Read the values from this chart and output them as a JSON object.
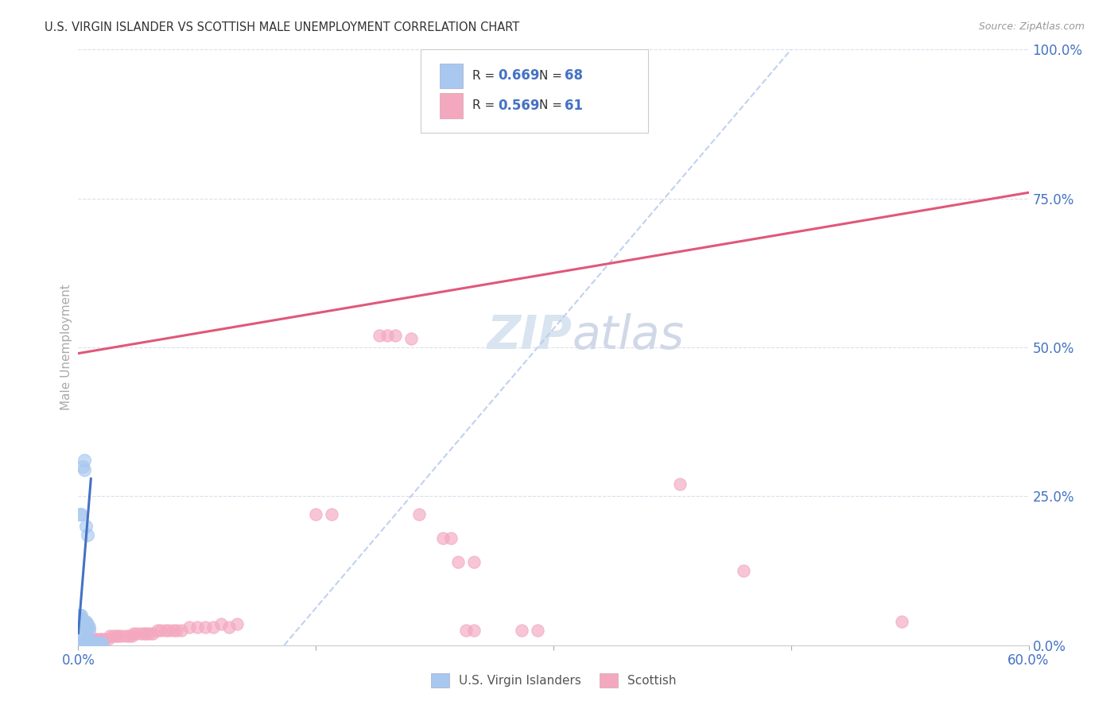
{
  "title": "U.S. VIRGIN ISLANDER VS SCOTTISH MALE UNEMPLOYMENT CORRELATION CHART",
  "source": "Source: ZipAtlas.com",
  "ylabel": "Male Unemployment",
  "x_min": 0.0,
  "x_max": 0.6,
  "y_min": 0.0,
  "y_max": 1.0,
  "legend_label_1": "U.S. Virgin Islanders",
  "legend_label_2": "Scottish",
  "color_blue": "#A8C8F0",
  "color_pink": "#F4A8C0",
  "color_blue_dark": "#4472C4",
  "color_pink_dark": "#E05878",
  "color_dashed": "#BBCCEE",
  "background_color": "#FFFFFF",
  "grid_color": "#DDDDEE",
  "title_color": "#333333",
  "source_color": "#999999",
  "axis_label_color": "#4472C4",
  "blue_scatter": [
    [
      0.001,
      0.22
    ],
    [
      0.003,
      0.3
    ],
    [
      0.004,
      0.31
    ],
    [
      0.004,
      0.295
    ],
    [
      0.002,
      0.22
    ],
    [
      0.005,
      0.2
    ],
    [
      0.006,
      0.185
    ],
    [
      0.0,
      0.045
    ],
    [
      0.0,
      0.04
    ],
    [
      0.0,
      0.035
    ],
    [
      0.0,
      0.03
    ],
    [
      0.001,
      0.05
    ],
    [
      0.001,
      0.045
    ],
    [
      0.001,
      0.04
    ],
    [
      0.001,
      0.035
    ],
    [
      0.002,
      0.05
    ],
    [
      0.002,
      0.045
    ],
    [
      0.002,
      0.04
    ],
    [
      0.003,
      0.04
    ],
    [
      0.003,
      0.035
    ],
    [
      0.003,
      0.03
    ],
    [
      0.004,
      0.04
    ],
    [
      0.004,
      0.035
    ],
    [
      0.005,
      0.04
    ],
    [
      0.005,
      0.035
    ],
    [
      0.006,
      0.035
    ],
    [
      0.006,
      0.03
    ],
    [
      0.007,
      0.03
    ],
    [
      0.007,
      0.025
    ],
    [
      0.0,
      0.025
    ],
    [
      0.0,
      0.02
    ],
    [
      0.0,
      0.015
    ],
    [
      0.0,
      0.01
    ],
    [
      0.001,
      0.025
    ],
    [
      0.001,
      0.02
    ],
    [
      0.001,
      0.015
    ],
    [
      0.001,
      0.01
    ],
    [
      0.002,
      0.025
    ],
    [
      0.002,
      0.02
    ],
    [
      0.002,
      0.015
    ],
    [
      0.003,
      0.02
    ],
    [
      0.003,
      0.015
    ],
    [
      0.004,
      0.015
    ],
    [
      0.004,
      0.01
    ],
    [
      0.005,
      0.01
    ],
    [
      0.005,
      0.005
    ],
    [
      0.006,
      0.01
    ],
    [
      0.006,
      0.005
    ],
    [
      0.007,
      0.005
    ],
    [
      0.008,
      0.005
    ],
    [
      0.0,
      0.005
    ],
    [
      0.0,
      0.003
    ],
    [
      0.001,
      0.005
    ],
    [
      0.001,
      0.003
    ],
    [
      0.002,
      0.003
    ],
    [
      0.003,
      0.003
    ],
    [
      0.004,
      0.003
    ],
    [
      0.005,
      0.003
    ],
    [
      0.006,
      0.003
    ],
    [
      0.007,
      0.003
    ],
    [
      0.008,
      0.003
    ],
    [
      0.009,
      0.003
    ],
    [
      0.01,
      0.003
    ],
    [
      0.011,
      0.003
    ],
    [
      0.012,
      0.003
    ],
    [
      0.013,
      0.003
    ],
    [
      0.014,
      0.003
    ],
    [
      0.015,
      0.003
    ]
  ],
  "pink_scatter": [
    [
      0.0,
      0.005
    ],
    [
      0.002,
      0.005
    ],
    [
      0.003,
      0.005
    ],
    [
      0.005,
      0.01
    ],
    [
      0.007,
      0.01
    ],
    [
      0.009,
      0.01
    ],
    [
      0.01,
      0.01
    ],
    [
      0.012,
      0.01
    ],
    [
      0.014,
      0.01
    ],
    [
      0.015,
      0.01
    ],
    [
      0.017,
      0.01
    ],
    [
      0.019,
      0.01
    ],
    [
      0.02,
      0.015
    ],
    [
      0.022,
      0.015
    ],
    [
      0.024,
      0.015
    ],
    [
      0.025,
      0.015
    ],
    [
      0.027,
      0.015
    ],
    [
      0.03,
      0.015
    ],
    [
      0.032,
      0.015
    ],
    [
      0.034,
      0.015
    ],
    [
      0.035,
      0.02
    ],
    [
      0.037,
      0.02
    ],
    [
      0.04,
      0.02
    ],
    [
      0.042,
      0.02
    ],
    [
      0.043,
      0.02
    ],
    [
      0.045,
      0.02
    ],
    [
      0.047,
      0.02
    ],
    [
      0.05,
      0.025
    ],
    [
      0.052,
      0.025
    ],
    [
      0.055,
      0.025
    ],
    [
      0.057,
      0.025
    ],
    [
      0.06,
      0.025
    ],
    [
      0.062,
      0.025
    ],
    [
      0.065,
      0.025
    ],
    [
      0.07,
      0.03
    ],
    [
      0.075,
      0.03
    ],
    [
      0.08,
      0.03
    ],
    [
      0.085,
      0.03
    ],
    [
      0.09,
      0.035
    ],
    [
      0.095,
      0.03
    ],
    [
      0.1,
      0.035
    ],
    [
      0.15,
      0.22
    ],
    [
      0.16,
      0.22
    ],
    [
      0.19,
      0.52
    ],
    [
      0.195,
      0.52
    ],
    [
      0.2,
      0.52
    ],
    [
      0.21,
      0.515
    ],
    [
      0.215,
      0.22
    ],
    [
      0.23,
      0.18
    ],
    [
      0.235,
      0.18
    ],
    [
      0.24,
      0.14
    ],
    [
      0.245,
      0.025
    ],
    [
      0.25,
      0.025
    ],
    [
      0.28,
      0.025
    ],
    [
      0.29,
      0.025
    ],
    [
      0.25,
      0.14
    ],
    [
      0.38,
      0.27
    ],
    [
      0.42,
      0.125
    ],
    [
      0.52,
      0.04
    ]
  ],
  "blue_trend_line": [
    [
      0.0,
      0.02
    ],
    [
      0.008,
      0.28
    ]
  ],
  "pink_trend_line": [
    [
      0.0,
      0.49
    ],
    [
      0.6,
      0.76
    ]
  ],
  "dashed_line": [
    [
      0.13,
      0.0
    ],
    [
      0.45,
      1.0
    ]
  ],
  "marker_size_blue": 130,
  "marker_size_pink": 120
}
